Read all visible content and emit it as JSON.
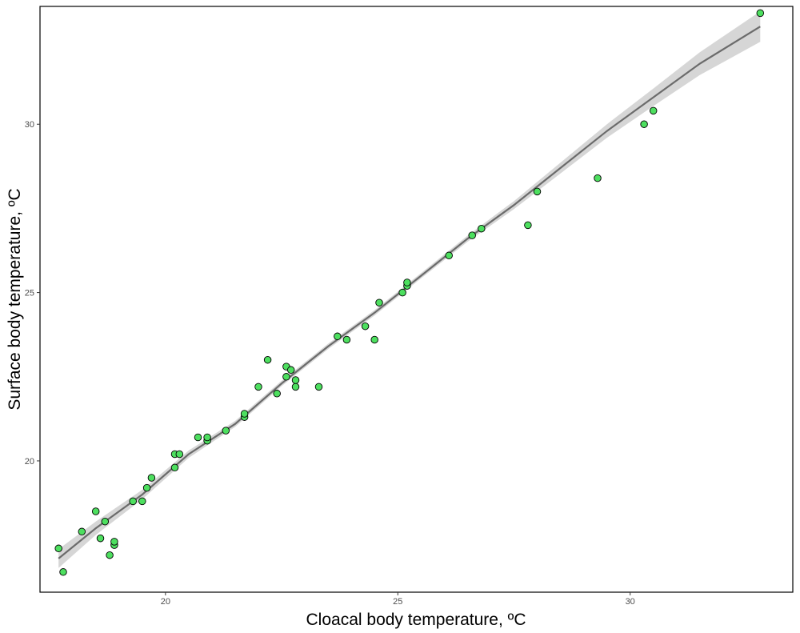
{
  "chart_data": {
    "type": "scatter",
    "xlabel": "Cloacal body temperature, ºC",
    "ylabel": "Surface body temperature, ºC",
    "xlim": [
      17.3,
      33.5
    ],
    "ylim": [
      16.1,
      33.5
    ],
    "xticks": [
      20,
      25,
      30
    ],
    "yticks": [
      20,
      25,
      30
    ],
    "grid": false,
    "legend": "none",
    "point_fill": "#4ddf5f",
    "point_stroke": "#000000",
    "fit_line_color": "#6b6b6b",
    "ci_band_color": "#d6d6d6",
    "points": [
      [
        17.7,
        17.4
      ],
      [
        17.8,
        16.7
      ],
      [
        18.2,
        17.9
      ],
      [
        18.5,
        18.5
      ],
      [
        18.6,
        17.7
      ],
      [
        18.7,
        18.2
      ],
      [
        18.8,
        17.2
      ],
      [
        18.9,
        17.5
      ],
      [
        18.9,
        17.6
      ],
      [
        19.3,
        18.8
      ],
      [
        19.5,
        18.8
      ],
      [
        19.6,
        19.2
      ],
      [
        19.7,
        19.5
      ],
      [
        20.2,
        19.8
      ],
      [
        20.2,
        20.2
      ],
      [
        20.3,
        20.2
      ],
      [
        20.7,
        20.7
      ],
      [
        20.9,
        20.6
      ],
      [
        20.9,
        20.7
      ],
      [
        21.3,
        20.9
      ],
      [
        21.7,
        21.3
      ],
      [
        21.7,
        21.4
      ],
      [
        22.0,
        22.2
      ],
      [
        22.2,
        23.0
      ],
      [
        22.4,
        22.0
      ],
      [
        22.6,
        22.5
      ],
      [
        22.6,
        22.8
      ],
      [
        22.7,
        22.7
      ],
      [
        22.8,
        22.2
      ],
      [
        22.8,
        22.4
      ],
      [
        23.3,
        22.2
      ],
      [
        23.7,
        23.7
      ],
      [
        23.9,
        23.6
      ],
      [
        24.3,
        24.0
      ],
      [
        24.5,
        23.6
      ],
      [
        24.6,
        24.7
      ],
      [
        25.1,
        25.0
      ],
      [
        25.2,
        25.2
      ],
      [
        25.2,
        25.3
      ],
      [
        26.1,
        26.1
      ],
      [
        26.6,
        26.7
      ],
      [
        26.8,
        26.9
      ],
      [
        27.8,
        27.0
      ],
      [
        28.0,
        28.0
      ],
      [
        29.3,
        28.4
      ],
      [
        30.3,
        30.0
      ],
      [
        30.5,
        30.4
      ],
      [
        32.8,
        33.3
      ]
    ],
    "fit_line": [
      [
        17.7,
        17.1
      ],
      [
        18.5,
        18.0
      ],
      [
        19.5,
        19.0
      ],
      [
        20.5,
        20.2
      ],
      [
        21.5,
        21.1
      ],
      [
        22.5,
        22.3
      ],
      [
        23.5,
        23.4
      ],
      [
        24.5,
        24.4
      ],
      [
        25.5,
        25.5
      ],
      [
        26.5,
        26.6
      ],
      [
        27.5,
        27.6
      ],
      [
        28.5,
        28.7
      ],
      [
        29.5,
        29.8
      ],
      [
        30.5,
        30.8
      ],
      [
        31.5,
        31.8
      ],
      [
        32.8,
        32.9
      ]
    ],
    "ci_halfwidth": [
      0.28,
      0.2,
      0.14,
      0.11,
      0.09,
      0.08,
      0.08,
      0.08,
      0.08,
      0.09,
      0.12,
      0.16,
      0.2,
      0.26,
      0.34,
      0.45
    ]
  }
}
